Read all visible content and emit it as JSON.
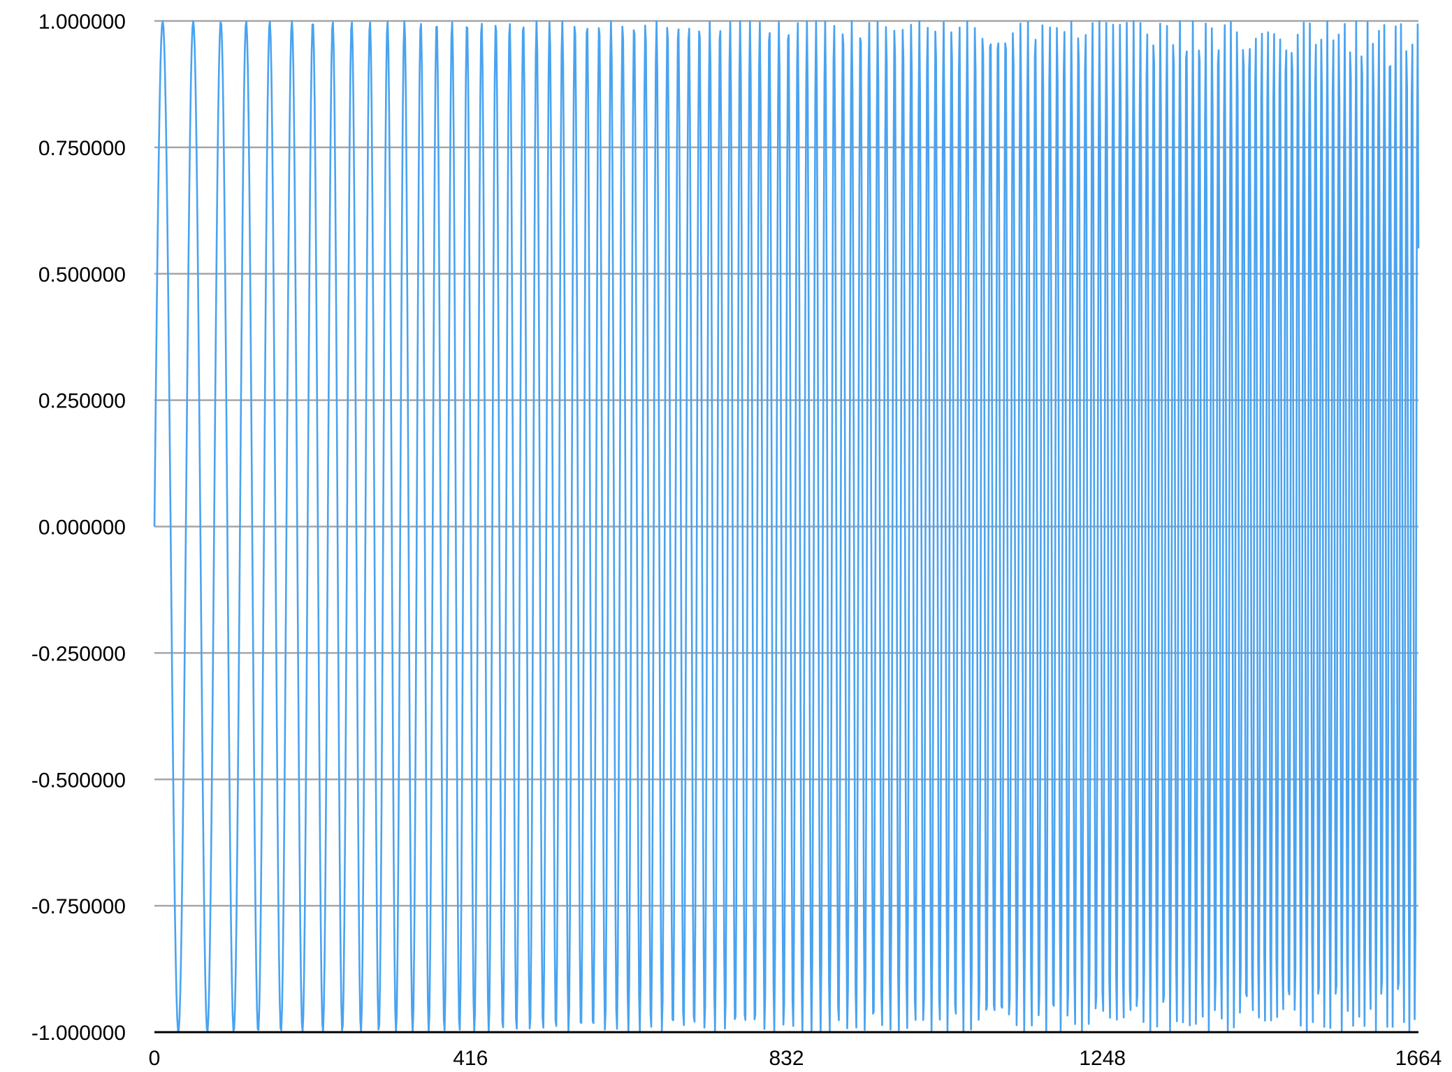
{
  "chart_data": {
    "type": "line",
    "title": "",
    "xlabel": "",
    "ylabel": "",
    "xlim": [
      0,
      1664
    ],
    "ylim": [
      -1,
      1
    ],
    "x_ticks": [
      0,
      416,
      832,
      1248,
      1664
    ],
    "x_tick_labels": [
      "0",
      "416",
      "832",
      "1248",
      "1664"
    ],
    "y_ticks": [
      1,
      0.75,
      0.5,
      0.25,
      0,
      -0.25,
      -0.5,
      -0.75,
      -1
    ],
    "y_tick_labels": [
      "1.000000",
      "0.750000",
      "0.500000",
      "0.250000",
      "0.000000",
      "-0.250000",
      "-0.500000",
      "-0.750000",
      "-1.000000"
    ],
    "grid": true,
    "legend": "none",
    "series": [
      {
        "color": "#4aa3f0",
        "description_of_curve": "sampled linear chirp sin(phase), phase accelerating with sample index; starts at 0, ends near -0.67",
        "function": "y = sin(2*pi*(0.0227*n + 0.0000349*n*n)), n = 0..1664",
        "n_points": 1665
      }
    ]
  }
}
